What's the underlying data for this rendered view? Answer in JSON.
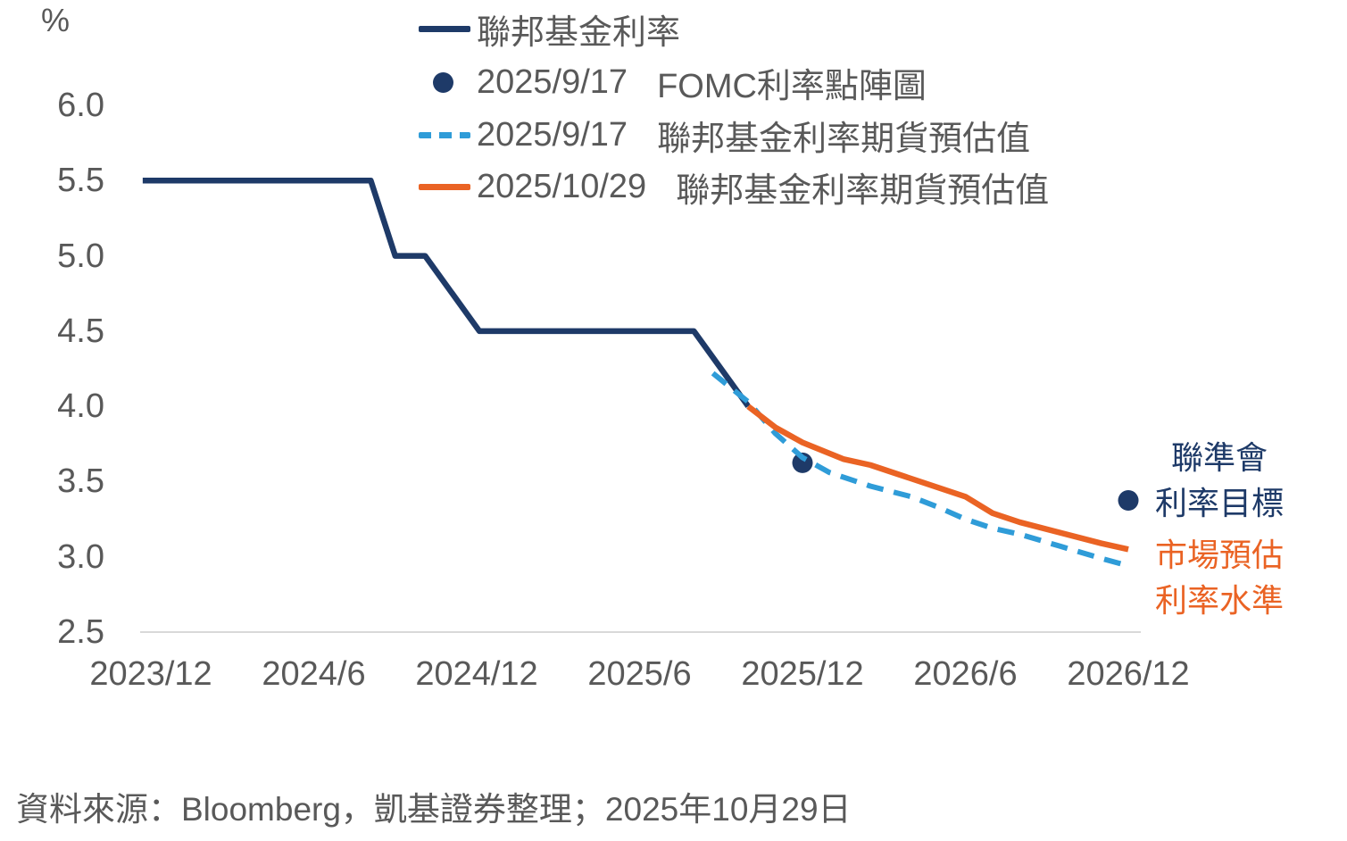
{
  "chart_data": {
    "type": "line",
    "title": "",
    "y_unit": "%",
    "ylim": [
      2.5,
      6.0
    ],
    "grid": "bottom-axis-line-only",
    "legend_position": "top-center-inside",
    "x_axis_note": "months measured from 2023/12",
    "x_ticks": [
      {
        "label": "2023/12",
        "month": 0
      },
      {
        "label": "2024/6",
        "month": 6
      },
      {
        "label": "2024/12",
        "month": 12
      },
      {
        "label": "2025/6",
        "month": 18
      },
      {
        "label": "2025/12",
        "month": 24
      },
      {
        "label": "2026/6",
        "month": 30
      },
      {
        "label": "2026/12",
        "month": 36
      }
    ],
    "y_ticks": [
      "6.0",
      "5.5",
      "5.0",
      "4.5",
      "4.0",
      "3.5",
      "3.0",
      "2.5"
    ],
    "series": [
      {
        "name": "聯邦基金利率",
        "kind": "line",
        "style": "solid",
        "color": "#1E3A68",
        "width": 6.5,
        "points": [
          [
            -0.3,
            5.5
          ],
          [
            8.1,
            5.5
          ],
          [
            9.0,
            5.0
          ],
          [
            10.1,
            5.0
          ],
          [
            12.1,
            4.5
          ],
          [
            20.0,
            4.5
          ],
          [
            22.0,
            4.0
          ]
        ]
      },
      {
        "name": "2025/9/17 FOMC利率點陣圖",
        "kind": "scatter",
        "color": "#1E3A68",
        "radius": 11.5,
        "points": [
          [
            24,
            3.625
          ],
          [
            36,
            3.375
          ]
        ]
      },
      {
        "name": "2025/9/17 聯邦基金利率期貨預估值",
        "kind": "line",
        "style": "dashed",
        "color": "#2F9CD8",
        "width": 6,
        "points": [
          [
            20.7,
            4.22
          ],
          [
            22,
            4.03
          ],
          [
            23,
            3.82
          ],
          [
            24,
            3.66
          ],
          [
            25,
            3.56
          ],
          [
            26.5,
            3.47
          ],
          [
            28,
            3.4
          ],
          [
            29,
            3.33
          ],
          [
            30,
            3.25
          ],
          [
            31,
            3.19
          ],
          [
            32,
            3.15
          ],
          [
            33.5,
            3.07
          ],
          [
            35,
            2.99
          ],
          [
            36,
            2.94
          ]
        ]
      },
      {
        "name": "2025/10/29 聯邦基金利率期貨預估值",
        "kind": "line",
        "style": "solid",
        "color": "#EA6324",
        "width": 6.5,
        "points": [
          [
            22,
            4.0
          ],
          [
            23,
            3.86
          ],
          [
            24,
            3.76
          ],
          [
            25.5,
            3.65
          ],
          [
            26.5,
            3.61
          ],
          [
            27.5,
            3.55
          ],
          [
            29,
            3.46
          ],
          [
            30,
            3.4
          ],
          [
            31,
            3.29
          ],
          [
            32,
            3.23
          ],
          [
            33.5,
            3.16
          ],
          [
            35,
            3.09
          ],
          [
            36,
            3.05
          ]
        ]
      }
    ]
  },
  "legend": {
    "items": [
      {
        "marker": "line-solid",
        "color": "#1E3A68",
        "date": "",
        "label": "聯邦基金利率"
      },
      {
        "marker": "dot",
        "color": "#1E3A68",
        "date": "2025/9/17",
        "label": "FOMC利率點陣圖"
      },
      {
        "marker": "line-dashed",
        "color": "#2F9CD8",
        "date": "2025/9/17",
        "label": "聯邦基金利率期貨預估值"
      },
      {
        "marker": "line-solid",
        "color": "#EA6324",
        "date": "2025/10/29",
        "label": "聯邦基金利率期貨預估值"
      }
    ]
  },
  "annotations": {
    "fed_target": {
      "lines": [
        "聯準會",
        "利率目標"
      ],
      "color": "#1E3A68"
    },
    "market_estimate": {
      "lines": [
        "市場預估",
        "利率水準"
      ],
      "color": "#EA6324"
    }
  },
  "source": "資料來源：Bloomberg，凱基證券整理；2025年10月29日",
  "colors": {
    "navy": "#1E3A68",
    "light_blue": "#2F9CD8",
    "orange": "#EA6324",
    "axis_text": "#595959",
    "axis_line": "#D9D9D9"
  }
}
